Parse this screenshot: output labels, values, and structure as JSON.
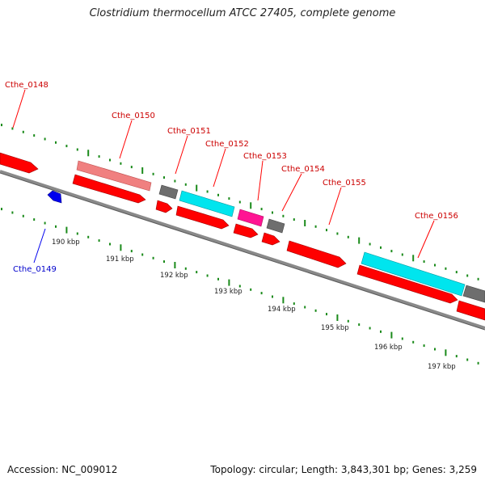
{
  "header": {
    "title": "Clostridium thermocellum ATCC 27405, complete genome"
  },
  "footer": {
    "accession": "Accession: NC_009012",
    "topology": "Topology: circular; Length: 3,843,301 bp; Genes: 3,259"
  },
  "colors": {
    "backbone": "#8a8a8a",
    "cds": "#ff0000",
    "forward_label": "#cc0000",
    "reverse_label": "#0000cc",
    "tick": "#1a8a1a",
    "salmon": "#f08080",
    "grey": "#6e6e6e",
    "cyan": "#00e5ee",
    "magenta": "#ff1493",
    "blue": "#0000ee"
  },
  "genes": [
    {
      "name": "Cthe_0148",
      "strand": "forward"
    },
    {
      "name": "Cthe_0149",
      "strand": "reverse"
    },
    {
      "name": "Cthe_0150",
      "strand": "forward"
    },
    {
      "name": "Cthe_0151",
      "strand": "forward"
    },
    {
      "name": "Cthe_0152",
      "strand": "forward"
    },
    {
      "name": "Cthe_0153",
      "strand": "forward"
    },
    {
      "name": "Cthe_0154",
      "strand": "forward"
    },
    {
      "name": "Cthe_0155",
      "strand": "forward"
    },
    {
      "name": "Cthe_0156",
      "strand": "forward"
    }
  ],
  "scale_labels": [
    "190 kbp",
    "191 kbp",
    "192 kbp",
    "193 kbp",
    "194 kbp",
    "195 kbp",
    "196 kbp",
    "197 kbp"
  ]
}
